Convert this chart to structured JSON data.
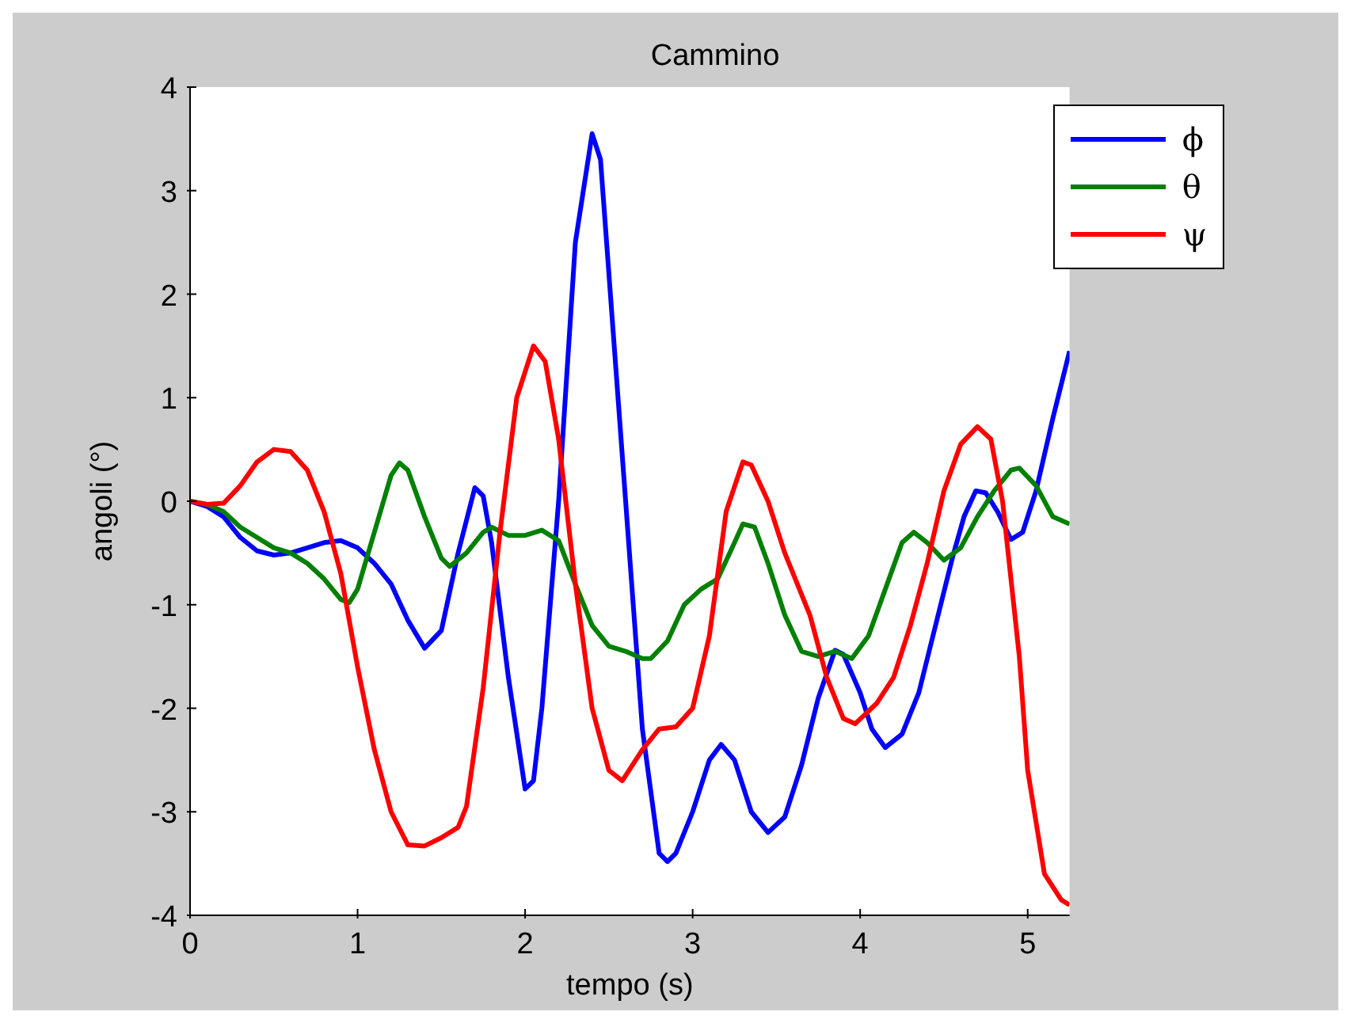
{
  "chart_data": {
    "type": "line",
    "title": "Cammino",
    "xlabel": "tempo (s)",
    "ylabel": "angoli (°)",
    "xlim": [
      0,
      5.25
    ],
    "xticks": [
      0,
      1,
      2,
      3,
      4,
      5
    ],
    "ylim": [
      -4,
      4
    ],
    "yticks": [
      -4,
      -3,
      -2,
      -1,
      0,
      1,
      2,
      3,
      4
    ],
    "grid": false,
    "legend": "top right",
    "marker": "none",
    "line_style": "solid",
    "series": [
      {
        "name": "ϕ",
        "color": "#0000ff",
        "x": [
          0,
          0.1,
          0.2,
          0.3,
          0.4,
          0.5,
          0.6,
          0.7,
          0.8,
          0.9,
          1.0,
          1.1,
          1.2,
          1.3,
          1.4,
          1.5,
          1.6,
          1.7,
          1.75,
          1.8,
          1.9,
          2.0,
          2.05,
          2.1,
          2.2,
          2.3,
          2.4,
          2.45,
          2.5,
          2.6,
          2.7,
          2.8,
          2.85,
          2.9,
          3.0,
          3.1,
          3.17,
          3.25,
          3.35,
          3.45,
          3.55,
          3.65,
          3.75,
          3.85,
          3.9,
          4.0,
          4.07,
          4.15,
          4.25,
          4.35,
          4.45,
          4.55,
          4.62,
          4.69,
          4.75,
          4.82,
          4.9,
          4.97,
          5.05,
          5.15,
          5.25
        ],
        "values": [
          0,
          -0.05,
          -0.15,
          -0.35,
          -0.48,
          -0.52,
          -0.5,
          -0.45,
          -0.4,
          -0.38,
          -0.45,
          -0.6,
          -0.8,
          -1.15,
          -1.42,
          -1.25,
          -0.5,
          0.13,
          0.05,
          -0.4,
          -1.7,
          -2.78,
          -2.7,
          -2.0,
          0.0,
          2.5,
          3.55,
          3.3,
          2.2,
          0.0,
          -2.2,
          -3.4,
          -3.48,
          -3.4,
          -3.0,
          -2.5,
          -2.35,
          -2.5,
          -3.0,
          -3.2,
          -3.05,
          -2.55,
          -1.9,
          -1.44,
          -1.48,
          -1.85,
          -2.2,
          -2.38,
          -2.25,
          -1.85,
          -1.2,
          -0.55,
          -0.15,
          0.1,
          0.08,
          -0.1,
          -0.37,
          -0.3,
          0.1,
          0.8,
          1.45
        ]
      },
      {
        "name": "θ",
        "color": "#008000",
        "x": [
          0,
          0.1,
          0.2,
          0.3,
          0.4,
          0.5,
          0.6,
          0.7,
          0.8,
          0.9,
          0.95,
          1.0,
          1.1,
          1.2,
          1.25,
          1.3,
          1.4,
          1.5,
          1.55,
          1.65,
          1.75,
          1.8,
          1.9,
          2.0,
          2.1,
          2.2,
          2.3,
          2.4,
          2.5,
          2.6,
          2.7,
          2.75,
          2.85,
          2.95,
          3.05,
          3.15,
          3.25,
          3.3,
          3.37,
          3.45,
          3.55,
          3.65,
          3.75,
          3.85,
          3.95,
          4.05,
          4.15,
          4.25,
          4.32,
          4.4,
          4.5,
          4.6,
          4.7,
          4.8,
          4.9,
          4.95,
          5.05,
          5.15,
          5.25
        ],
        "values": [
          0,
          -0.03,
          -0.1,
          -0.25,
          -0.35,
          -0.45,
          -0.5,
          -0.6,
          -0.75,
          -0.95,
          -0.98,
          -0.85,
          -0.3,
          0.25,
          0.37,
          0.3,
          -0.15,
          -0.55,
          -0.63,
          -0.5,
          -0.3,
          -0.25,
          -0.33,
          -0.33,
          -0.28,
          -0.38,
          -0.8,
          -1.2,
          -1.4,
          -1.45,
          -1.52,
          -1.52,
          -1.35,
          -1.0,
          -0.85,
          -0.75,
          -0.4,
          -0.22,
          -0.25,
          -0.6,
          -1.1,
          -1.45,
          -1.5,
          -1.45,
          -1.52,
          -1.3,
          -0.85,
          -0.4,
          -0.3,
          -0.4,
          -0.57,
          -0.45,
          -0.15,
          0.1,
          0.3,
          0.32,
          0.15,
          -0.15,
          -0.22
        ]
      },
      {
        "name": "ψ",
        "color": "#ff0000",
        "x": [
          0,
          0.1,
          0.2,
          0.3,
          0.4,
          0.5,
          0.6,
          0.7,
          0.8,
          0.9,
          1.0,
          1.1,
          1.2,
          1.3,
          1.4,
          1.5,
          1.6,
          1.65,
          1.75,
          1.85,
          1.95,
          2.05,
          2.12,
          2.2,
          2.3,
          2.4,
          2.5,
          2.58,
          2.7,
          2.8,
          2.9,
          3.0,
          3.1,
          3.2,
          3.3,
          3.35,
          3.45,
          3.55,
          3.7,
          3.8,
          3.9,
          3.97,
          4.1,
          4.2,
          4.3,
          4.4,
          4.5,
          4.6,
          4.7,
          4.78,
          4.85,
          4.95,
          5.0,
          5.1,
          5.2,
          5.25
        ],
        "values": [
          0,
          -0.03,
          -0.02,
          0.15,
          0.38,
          0.5,
          0.48,
          0.3,
          -0.1,
          -0.7,
          -1.6,
          -2.4,
          -3.0,
          -3.32,
          -3.33,
          -3.25,
          -3.15,
          -2.95,
          -1.8,
          -0.3,
          1.0,
          1.5,
          1.35,
          0.6,
          -0.8,
          -2.0,
          -2.6,
          -2.7,
          -2.4,
          -2.2,
          -2.18,
          -2.0,
          -1.3,
          -0.1,
          0.38,
          0.35,
          0.0,
          -0.5,
          -1.1,
          -1.7,
          -2.1,
          -2.15,
          -1.95,
          -1.7,
          -1.2,
          -0.6,
          0.1,
          0.55,
          0.72,
          0.6,
          0.0,
          -1.5,
          -2.6,
          -3.6,
          -3.85,
          -3.9
        ]
      }
    ]
  }
}
